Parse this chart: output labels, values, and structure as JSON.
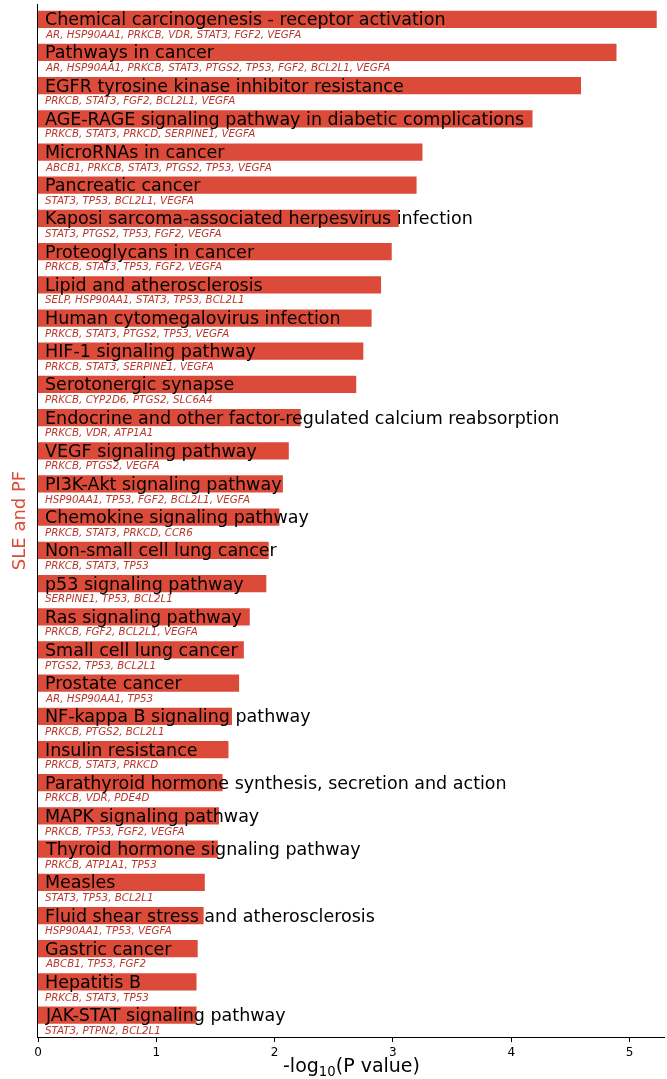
{
  "chart_data": {
    "type": "bar",
    "orientation": "horizontal",
    "xlabel": "-log$_{10}$(P value)",
    "ylabel": "SLE and PF",
    "color": "#dc4b3a",
    "categories": [
      "Chemical carcinogenesis - receptor activation",
      "Pathways in cancer",
      "EGFR tyrosine kinase inhibitor resistance",
      "AGE-RAGE signaling pathway in diabetic complications",
      "MicroRNAs in cancer",
      "Pancreatic cancer",
      "Kaposi sarcoma-associated herpesvirus infection",
      "Proteoglycans in cancer",
      "Lipid and atherosclerosis",
      "Human cytomegalovirus infection",
      "HIF-1 signaling pathway",
      "Serotonergic synapse",
      "Endocrine and other factor-regulated calcium reabsorption",
      "VEGF signaling pathway",
      "PI3K-Akt signaling pathway",
      "Chemokine signaling pathway",
      "Non-small cell lung cancer",
      "p53 signaling pathway",
      "Ras signaling pathway",
      "Small cell lung cancer",
      "Prostate cancer",
      "NF-kappa B signaling pathway",
      "Insulin resistance",
      "Parathyroid hormone synthesis, secretion and action",
      "MAPK signaling pathway",
      "Thyroid hormone signaling pathway",
      "Measles",
      "Fluid shear stress and atherosclerosis",
      "Gastric cancer",
      "Hepatitis B",
      "JAK-STAT signaling pathway"
    ],
    "values": [
      5.23,
      4.89,
      4.59,
      4.18,
      3.25,
      3.2,
      3.05,
      2.99,
      2.9,
      2.82,
      2.75,
      2.69,
      2.22,
      2.12,
      2.07,
      2.04,
      1.95,
      1.93,
      1.79,
      1.74,
      1.7,
      1.64,
      1.61,
      1.56,
      1.53,
      1.52,
      1.41,
      1.4,
      1.35,
      1.34,
      1.34
    ],
    "annotations": [
      "AR, HSP90AA1, PRKCB, VDR, STAT3, FGF2, VEGFA",
      "AR, HSP90AA1, PRKCB, STAT3, PTGS2, TP53, FGF2, BCL2L1, VEGFA",
      "PRKCB, STAT3, FGF2, BCL2L1, VEGFA",
      "PRKCB, STAT3, PRKCD, SERPINE1, VEGFA",
      "ABCB1, PRKCB, STAT3, PTGS2, TP53, VEGFA",
      "STAT3, TP53, BCL2L1, VEGFA",
      "STAT3, PTGS2, TP53, FGF2, VEGFA",
      "PRKCB, STAT3, TP53, FGF2, VEGFA",
      "SELP, HSP90AA1, STAT3, TP53, BCL2L1",
      "PRKCB, STAT3, PTGS2, TP53, VEGFA",
      "PRKCB, STAT3, SERPINE1, VEGFA",
      "PRKCB, CYP2D6, PTGS2, SLC6A4",
      "PRKCB, VDR, ATP1A1",
      "PRKCB, PTGS2, VEGFA",
      "HSP90AA1, TP53, FGF2, BCL2L1, VEGFA",
      "PRKCB, STAT3, PRKCD, CCR6",
      "PRKCB, STAT3, TP53",
      "SERPINE1, TP53, BCL2L1",
      "PRKCB, FGF2, BCL2L1, VEGFA",
      "PTGS2, TP53, BCL2L1",
      "AR, HSP90AA1, TP53",
      "PRKCB, PTGS2, BCL2L1",
      "PRKCB, STAT3, PRKCD",
      "PRKCB, VDR, PDE4D",
      "PRKCB, TP53, FGF2, VEGFA",
      "PRKCB, ATP1A1, TP53",
      "STAT3, TP53, BCL2L1",
      "HSP90AA1, TP53, VEGFA",
      "ABCB1, TP53, FGF2",
      "PRKCB, STAT3, TP53",
      "STAT3, PTPN2, BCL2L1"
    ],
    "xlim": [
      0,
      5.3
    ],
    "xticks": [
      0,
      1,
      2,
      3,
      4,
      5
    ],
    "grid": false
  }
}
